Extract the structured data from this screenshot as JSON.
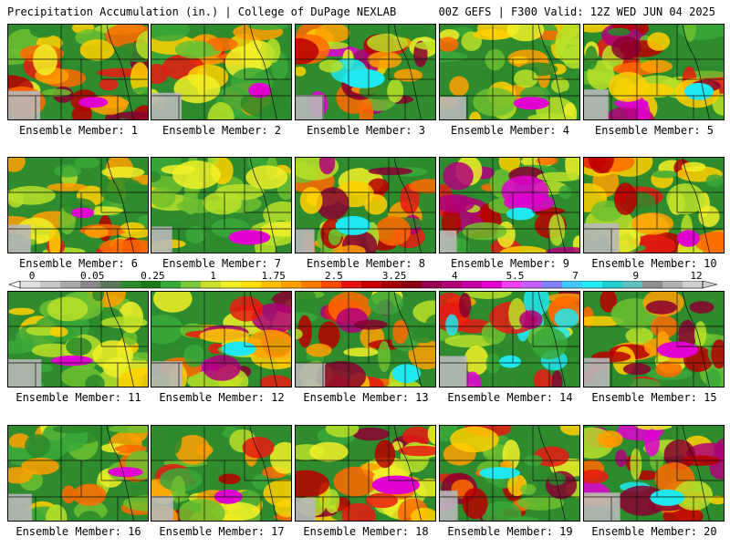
{
  "header": {
    "title": "Precipitation Accumulation (in.) | College of DuPage NEXLAB",
    "run_info": "00Z GEFS | F300 Valid: 12Z WED JUN 04 2025"
  },
  "colorbar": {
    "tick_labels": [
      "0",
      "0.05",
      "0.25",
      "1",
      "1.75",
      "2.5",
      "3.25",
      "4",
      "5.5",
      "7",
      "9",
      "12"
    ],
    "colors": [
      "#e0e0e0",
      "#c8c8c8",
      "#a8a8a8",
      "#888888",
      "#5a7a5a",
      "#2e8b2e",
      "#1a7a1a",
      "#3aa83a",
      "#7ac83a",
      "#c8e028",
      "#f0f028",
      "#ffe000",
      "#ffc000",
      "#ffa000",
      "#ff7a00",
      "#ff4a00",
      "#e81010",
      "#c80000",
      "#a80000",
      "#8a0010",
      "#9a0050",
      "#b0007a",
      "#c800a8",
      "#e000d0",
      "#f040f0",
      "#c060ff",
      "#8080ff",
      "#40c8ff",
      "#20f0f0",
      "#20d0d0",
      "#60c0c0",
      "#909090",
      "#b0b0b0",
      "#d0d0d0"
    ]
  },
  "members": [
    {
      "label": "Ensemble Member: 1",
      "intensity": 0.55
    },
    {
      "label": "Ensemble Member: 2",
      "intensity": 0.45
    },
    {
      "label": "Ensemble Member: 3",
      "intensity": 0.7
    },
    {
      "label": "Ensemble Member: 4",
      "intensity": 0.4
    },
    {
      "label": "Ensemble Member: 5",
      "intensity": 0.65
    },
    {
      "label": "Ensemble Member: 6",
      "intensity": 0.5
    },
    {
      "label": "Ensemble Member: 7",
      "intensity": 0.3
    },
    {
      "label": "Ensemble Member: 8",
      "intensity": 0.6
    },
    {
      "label": "Ensemble Member: 9",
      "intensity": 0.7
    },
    {
      "label": "Ensemble Member: 10",
      "intensity": 0.5
    },
    {
      "label": "Ensemble Member: 11",
      "intensity": 0.35
    },
    {
      "label": "Ensemble Member: 12",
      "intensity": 0.65
    },
    {
      "label": "Ensemble Member: 13",
      "intensity": 0.6
    },
    {
      "label": "Ensemble Member: 14",
      "intensity": 0.75
    },
    {
      "label": "Ensemble Member: 15",
      "intensity": 0.55
    },
    {
      "label": "Ensemble Member: 16",
      "intensity": 0.4
    },
    {
      "label": "Ensemble Member: 17",
      "intensity": 0.5
    },
    {
      "label": "Ensemble Member: 18",
      "intensity": 0.55
    },
    {
      "label": "Ensemble Member: 19",
      "intensity": 0.75
    },
    {
      "label": "Ensemble Member: 20",
      "intensity": 0.7
    }
  ]
}
